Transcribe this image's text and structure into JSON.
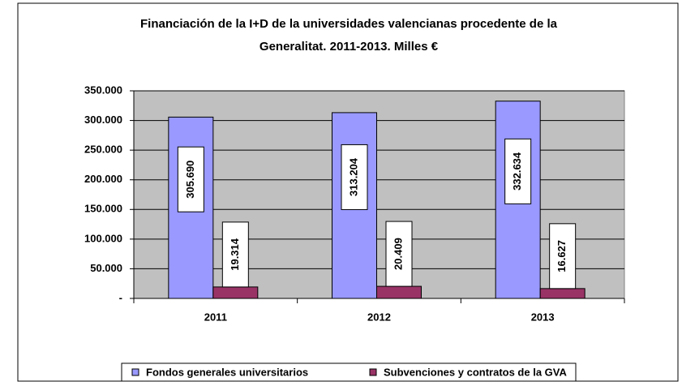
{
  "chart_data": {
    "type": "bar",
    "title_lines": [
      "Financiación de la I+D de la universidades valencianas procedente de la",
      "Generalitat. 2011-2013. Milles €"
    ],
    "categories": [
      "2011",
      "2012",
      "2013"
    ],
    "series": [
      {
        "name": "Fondos generales universitarios",
        "color": "#9999ff",
        "values": [
          305690,
          313204,
          332634
        ],
        "value_labels": [
          "305.690",
          "313.204",
          "332.634"
        ]
      },
      {
        "name": "Subvenciones y contratos de la GVA",
        "color": "#993366",
        "values": [
          19314,
          20409,
          16627
        ],
        "value_labels": [
          "19.314",
          "20.409",
          "16.627"
        ]
      }
    ],
    "ylim": [
      0,
      350000
    ],
    "yticks": [
      {
        "value": 0,
        "label": "-"
      },
      {
        "value": 50000,
        "label": "50.000"
      },
      {
        "value": 100000,
        "label": "100.000"
      },
      {
        "value": 150000,
        "label": "150.000"
      },
      {
        "value": 200000,
        "label": "200.000"
      },
      {
        "value": 250000,
        "label": "250.000"
      },
      {
        "value": 300000,
        "label": "300.000"
      },
      {
        "value": 350000,
        "label": "350.000"
      }
    ],
    "grid": true,
    "plot_background": "#c0c0c0",
    "legend": "bottom"
  }
}
